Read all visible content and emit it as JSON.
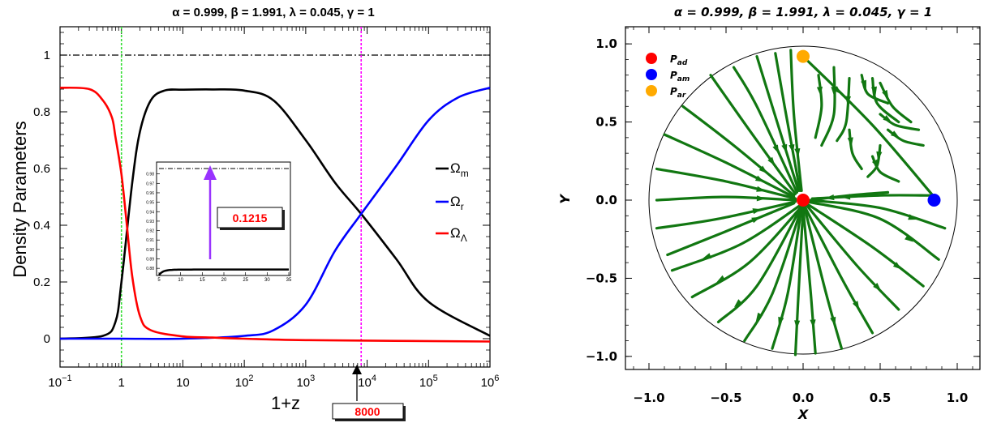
{
  "chart_data": [
    {
      "type": "line",
      "title": "α = 0.999, β = 1.991, λ = 0.045, γ = 1",
      "xlabel": "1+z",
      "ylabel": "Density Parameters",
      "x_scale": "log",
      "xlim": [
        0.1,
        1000000
      ],
      "ylim": [
        -0.1,
        1.1
      ],
      "x_tick_labels": [
        "10",
        "−1",
        "1",
        "10",
        "10",
        "2",
        "10",
        "3",
        "10",
        "4",
        "10",
        "5",
        "10",
        "6"
      ],
      "y_tick_labels": [
        "0",
        "0.2",
        "0.4",
        "0.6",
        "0.8",
        "1"
      ],
      "legend_position": "right",
      "series": [
        {
          "name": "Ω",
          "subscript": "m",
          "color": "#000000",
          "x": [
            0.1,
            0.5,
            0.8,
            1,
            1.5,
            2,
            3,
            5,
            10,
            30,
            100,
            300,
            1000,
            3000,
            8000,
            30000,
            100000,
            1000000
          ],
          "y": [
            0.0,
            0.01,
            0.06,
            0.2,
            0.55,
            0.73,
            0.84,
            0.875,
            0.878,
            0.879,
            0.875,
            0.84,
            0.7,
            0.55,
            0.44,
            0.28,
            0.13,
            0.01
          ]
        },
        {
          "name": "Ω",
          "subscript": "r",
          "color": "#0000ff",
          "x": [
            0.1,
            1,
            10,
            100,
            300,
            1000,
            3000,
            8000,
            30000,
            100000,
            300000,
            1000000
          ],
          "y": [
            0.0,
            0.0,
            0.0,
            0.01,
            0.03,
            0.12,
            0.31,
            0.44,
            0.61,
            0.77,
            0.85,
            0.885
          ]
        },
        {
          "name": "Ω",
          "subscript": "Λ",
          "color": "#ff0000",
          "x": [
            0.1,
            0.3,
            0.5,
            0.7,
            0.8,
            1,
            1.2,
            1.5,
            2,
            3,
            10,
            30,
            100,
            1000,
            1000000
          ],
          "y": [
            0.885,
            0.88,
            0.84,
            0.78,
            0.71,
            0.58,
            0.42,
            0.22,
            0.08,
            0.03,
            0.008,
            0.004,
            0.0,
            -0.005,
            -0.01
          ]
        }
      ],
      "reference_lines": [
        {
          "orientation": "horizontal",
          "value": 1,
          "style": "dash-dot",
          "color": "#000000"
        },
        {
          "orientation": "vertical",
          "value": 1,
          "style": "dotted",
          "color": "#33dd33"
        },
        {
          "orientation": "vertical",
          "value": 8000,
          "style": "dotted",
          "color": "#ff00ff"
        }
      ],
      "marker_label": "8000",
      "inset": {
        "x_tick_labels": [
          "5",
          "10",
          "15",
          "20",
          "25",
          "30",
          "35"
        ],
        "y_tick_labels": [
          "0.88",
          "0.89",
          "0.90",
          "0.91",
          "0.92",
          "0.93",
          "0.94",
          "0.95",
          "0.96",
          "0.97",
          "0.98"
        ],
        "xlim": [
          5,
          35
        ],
        "ylim": [
          0.875,
          0.99
        ],
        "reference_value": 0.985,
        "arrow_label": "0.1215",
        "curve_color": "#000000",
        "arrow_color": "#9933ff"
      }
    },
    {
      "type": "streamplot",
      "title": "α = 0.999, β = 1.991, λ = 0.045, γ = 1",
      "xlabel": "X",
      "ylabel": "Y",
      "xlim": [
        -1.15,
        1.15
      ],
      "ylim": [
        -1.1,
        1.1
      ],
      "x_tick_labels": [
        "−1.0",
        "−0.5",
        "0.0",
        "0.5",
        "1.0"
      ],
      "y_tick_labels": [
        "−1.0",
        "−0.5",
        "0.0",
        "0.5",
        "1.0"
      ],
      "legend_position": "top-left",
      "stream_color": "#117711",
      "boundary": "unit circle",
      "critical_points": [
        {
          "name": "P",
          "subscript": "ad",
          "x": 0.0,
          "y": 0.0,
          "color": "#ff0000"
        },
        {
          "name": "P",
          "subscript": "am",
          "x": 0.85,
          "y": 0.0,
          "color": "#0000ff"
        },
        {
          "name": "P",
          "subscript": "ar",
          "x": 0.0,
          "y": 0.92,
          "color": "#ffaa00"
        }
      ]
    }
  ]
}
